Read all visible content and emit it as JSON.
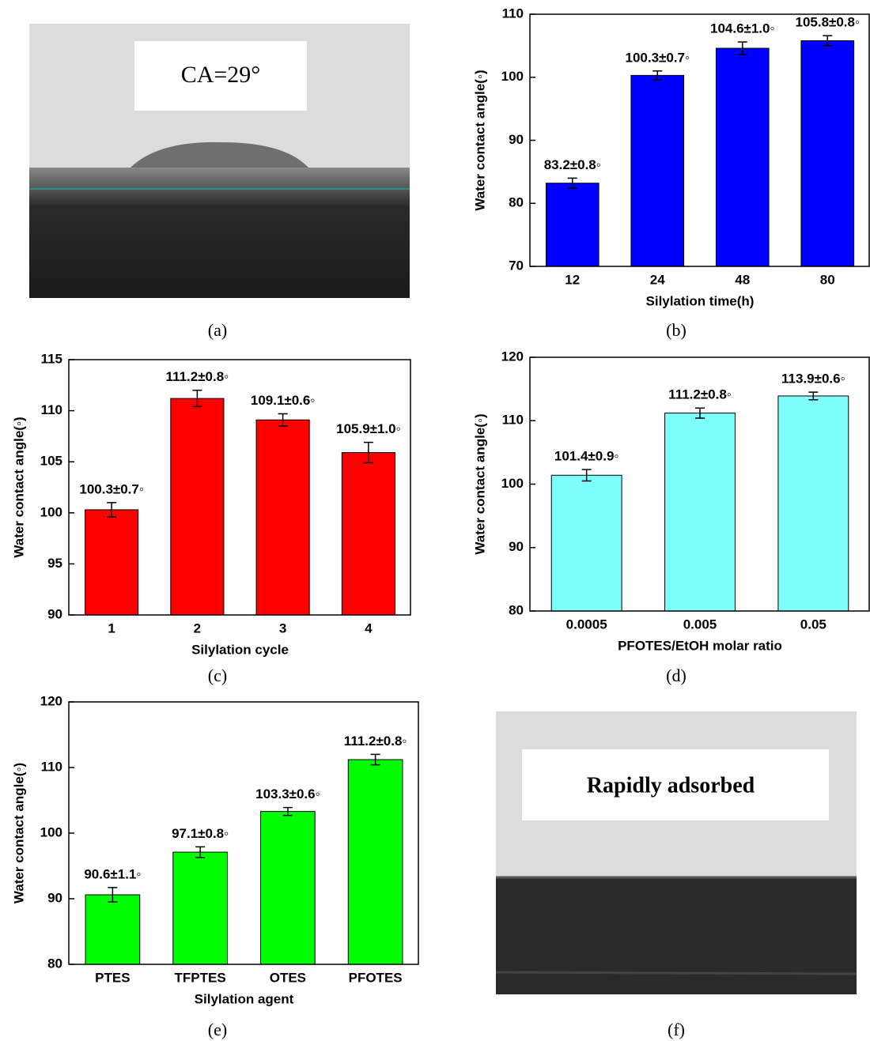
{
  "chart_data": [
    {
      "type": "bar",
      "panel_label": "(b)",
      "x_label": "Silylation time(h)",
      "y_label": "Water contact angle(◦)",
      "categories": [
        "12",
        "24",
        "48",
        "80"
      ],
      "values": [
        83.2,
        100.3,
        104.6,
        105.8
      ],
      "errors": [
        0.8,
        0.7,
        1.0,
        0.8
      ],
      "value_labels": [
        "83.2±0.8◦",
        "100.3±0.7◦",
        "104.6±1.0◦",
        "105.8±0.8◦"
      ],
      "color": "#0000ff",
      "ylim": [
        70,
        110
      ],
      "yticks": [
        70,
        80,
        90,
        100,
        110
      ]
    },
    {
      "type": "bar",
      "panel_label": "(c)",
      "x_label": "Silylation cycle",
      "y_label": "Water contact angle(◦)",
      "categories": [
        "1",
        "2",
        "3",
        "4"
      ],
      "values": [
        100.3,
        111.2,
        109.1,
        105.9
      ],
      "errors": [
        0.7,
        0.8,
        0.6,
        1.0
      ],
      "value_labels": [
        "100.3±0.7◦",
        "111.2±0.8◦",
        "109.1±0.6◦",
        "105.9±1.0◦"
      ],
      "color": "#ff0000",
      "ylim": [
        90,
        115
      ],
      "yticks": [
        90,
        95,
        100,
        105,
        110,
        115
      ]
    },
    {
      "type": "bar",
      "panel_label": "(d)",
      "x_label": "PFOTES/EtOH molar ratio",
      "y_label": "Water contact angle(◦)",
      "categories": [
        "0.0005",
        "0.005",
        "0.05"
      ],
      "values": [
        101.4,
        111.2,
        113.9
      ],
      "errors": [
        0.9,
        0.8,
        0.6
      ],
      "value_labels": [
        "101.4±0.9◦",
        "111.2±0.8◦",
        "113.9±0.6◦"
      ],
      "color": "#80ffff",
      "ylim": [
        80,
        120
      ],
      "yticks": [
        80,
        90,
        100,
        110,
        120
      ]
    },
    {
      "type": "bar",
      "panel_label": "(e)",
      "x_label": "Silylation agent",
      "y_label": "Water contact angle(◦)",
      "categories": [
        "PTES",
        "TFPTES",
        "OTES",
        "PFOTES"
      ],
      "values": [
        90.6,
        97.1,
        103.3,
        111.2
      ],
      "errors": [
        1.1,
        0.8,
        0.6,
        0.8
      ],
      "value_labels": [
        "90.6±1.1◦",
        "97.1±0.8◦",
        "103.3±0.6◦",
        "111.2±0.8◦"
      ],
      "color": "#00ff00",
      "ylim": [
        80,
        120
      ],
      "yticks": [
        80,
        90,
        100,
        110,
        120
      ]
    }
  ],
  "photos": [
    {
      "caption": "CA=29°",
      "panel_label": "(a)"
    },
    {
      "caption": "Rapidly adsorbed",
      "panel_label": "(f)"
    }
  ]
}
